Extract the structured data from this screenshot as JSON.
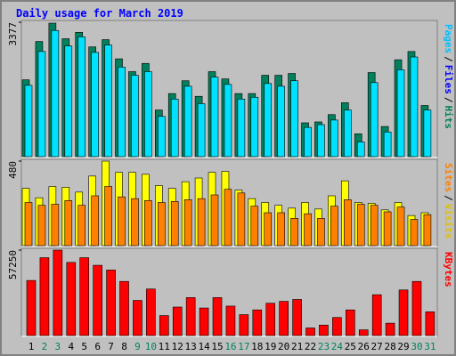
{
  "title": "Daily usage for March 2019",
  "separator": "/",
  "categories": [
    "1",
    "2",
    "3",
    "4",
    "5",
    "6",
    "7",
    "8",
    "9",
    "10",
    "11",
    "12",
    "13",
    "14",
    "15",
    "16",
    "17",
    "18",
    "19",
    "20",
    "21",
    "22",
    "23",
    "24",
    "25",
    "26",
    "27",
    "28",
    "29",
    "30",
    "31"
  ],
  "category_colors": [
    "#000000",
    "#00805c",
    "#00805c",
    "#000000",
    "#000000",
    "#000000",
    "#000000",
    "#000000",
    "#00805c",
    "#00805c",
    "#000000",
    "#000000",
    "#000000",
    "#000000",
    "#000000",
    "#00805c",
    "#00805c",
    "#000000",
    "#000000",
    "#000000",
    "#000000",
    "#000000",
    "#00805c",
    "#00805c",
    "#000000",
    "#000000",
    "#000000",
    "#000000",
    "#000000",
    "#00805c",
    "#00805c"
  ],
  "chart_data": [
    {
      "type": "bar",
      "ylim": [
        0,
        3377
      ],
      "yticks": [
        3377
      ],
      "legend": [
        "Pages",
        "Files",
        "Hits"
      ],
      "legend_colors": [
        "#00c0ff",
        "#0000ff",
        "#00805c"
      ],
      "series": [
        {
          "name": "Hits",
          "color": "#00805c",
          "values": [
            1930,
            2894,
            3354,
            2963,
            3124,
            2757,
            2940,
            2458,
            2136,
            2343,
            1172,
            1585,
            1907,
            1516,
            2136,
            1953,
            1585,
            1585,
            2045,
            2045,
            2090,
            850,
            873,
            1057,
            1355,
            574,
            2113,
            758,
            2435,
            2642,
            1286
          ]
        },
        {
          "name": "Pages",
          "color": "#00e0ff",
          "values": [
            1792,
            2642,
            3170,
            2780,
            3009,
            2619,
            2803,
            2251,
            2045,
            2136,
            1011,
            1447,
            1769,
            1332,
            1999,
            1815,
            1447,
            1493,
            1838,
            1769,
            1907,
            735,
            804,
            919,
            1172,
            368,
            1861,
            620,
            2182,
            2504,
            1172
          ]
        }
      ]
    },
    {
      "type": "bar",
      "ylim": [
        0,
        480
      ],
      "yticks": [
        480
      ],
      "legend": [
        "Sites",
        "Visits"
      ],
      "legend_colors": [
        "#ff8000",
        "#e0c000"
      ],
      "series": [
        {
          "name": "Visits",
          "color": "#ffff00",
          "values": [
            325,
            272,
            336,
            331,
            304,
            395,
            480,
            416,
            416,
            405,
            341,
            325,
            363,
            384,
            416,
            421,
            315,
            267,
            245,
            229,
            213,
            245,
            208,
            283,
            368,
            245,
            240,
            203,
            245,
            171,
            187
          ]
        },
        {
          "name": "Sites",
          "color": "#ff8000",
          "values": [
            245,
            229,
            235,
            256,
            229,
            283,
            336,
            277,
            267,
            256,
            245,
            251,
            261,
            267,
            288,
            320,
            299,
            224,
            187,
            187,
            155,
            181,
            155,
            224,
            261,
            235,
            229,
            192,
            219,
            149,
            176
          ]
        }
      ]
    },
    {
      "type": "bar",
      "ylim": [
        0,
        57250
      ],
      "yticks": [
        57250
      ],
      "legend": [
        "KBytes"
      ],
      "legend_colors": [
        "#ff0000"
      ],
      "series": [
        {
          "name": "KBytes",
          "color": "#ff0000",
          "values": [
            36894,
            52161,
            57250,
            48981,
            52161,
            47073,
            43892,
            36258,
            23536,
            31169,
            13358,
            19083,
            25444,
            18447,
            25444,
            19719,
            13994,
            17175,
            21628,
            22900,
            24172,
            5089,
            6997,
            12086,
            17175,
            3817,
            27353,
            8269,
            30533,
            36258,
            15903
          ]
        }
      ]
    }
  ]
}
